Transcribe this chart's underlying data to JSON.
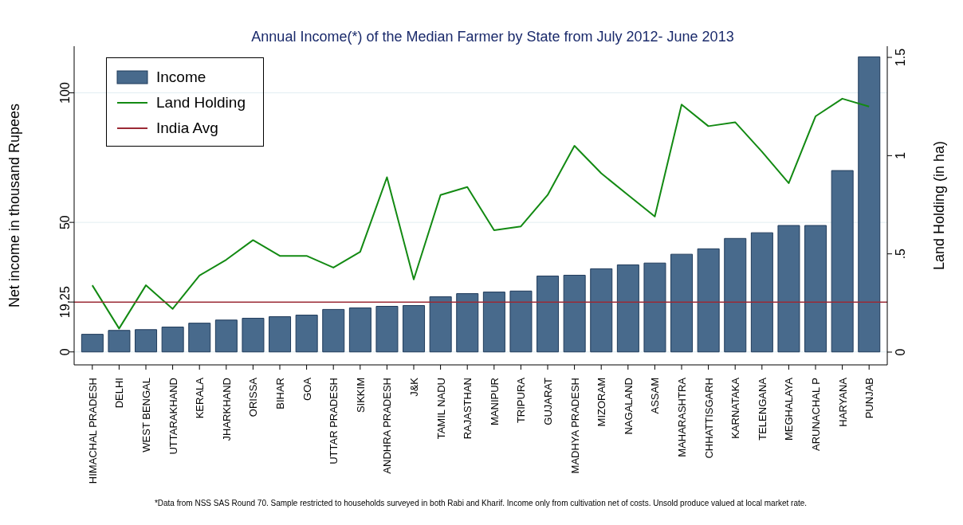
{
  "chart_data": {
    "type": "bar",
    "title": "Annual Income(*) of the Median Farmer by State from July 2012- June 2013",
    "ylabel": "Net income in thousand Rupees",
    "y2label": "Land Holding (in ha)",
    "categories": [
      "HIMACHAL PRADESH",
      "DELHI",
      "WEST BENGAL",
      "UTTARAKHAND",
      "KERALA",
      "JHARKHAND",
      "ORISSA",
      "BIHAR",
      "GOA",
      "UTTAR PRADESH",
      "SIKKIM",
      "ANDHRA PRADESH",
      "J&K",
      "TAMIL NADU",
      "RAJASTHAN",
      "MANIPUR",
      "TRIPURA",
      "GUJARAT",
      "MADHYA PRADESH",
      "MIZORAM",
      "NAGALAND",
      "ASSAM",
      "MAHARASHTRA",
      "CHHATTISGARH",
      "KARNATAKA",
      "TELENGANA",
      "MEGHALAYA",
      "ARUNACHAL P",
      "HARYANA",
      "PUNJAB"
    ],
    "series": [
      {
        "name": "Income",
        "color": "#486a8c",
        "values": [
          6.8,
          8.3,
          8.6,
          9.6,
          11.1,
          12.3,
          13,
          13.6,
          14.2,
          16.4,
          17,
          17.6,
          17.9,
          21.3,
          22.5,
          23.1,
          23.5,
          29.3,
          29.6,
          32.1,
          33.6,
          34.3,
          37.7,
          39.8,
          43.8,
          46,
          48.8,
          48.8,
          70,
          113.9
        ]
      },
      {
        "name": "Land Holding",
        "type": "line",
        "axis": "y2",
        "color": "#138a13",
        "values": [
          0.34,
          0.12,
          0.34,
          0.22,
          0.39,
          0.47,
          0.57,
          0.49,
          0.49,
          0.43,
          0.51,
          0.89,
          0.37,
          0.8,
          0.84,
          0.62,
          0.64,
          0.8,
          1.05,
          0.91,
          0.8,
          0.69,
          1.26,
          1.15,
          1.17,
          1.02,
          0.86,
          1.2,
          1.29,
          1.25
        ]
      }
    ],
    "ylim": [
      -5,
      118
    ],
    "yticks": [
      0,
      19.25,
      50,
      100
    ],
    "y2lim": [
      -0.065,
      1.557
    ],
    "y2ticks": [
      {
        "value": 0,
        "label": "0"
      },
      {
        "value": 0.5,
        "label": ".5"
      },
      {
        "value": 1,
        "label": "1"
      },
      {
        "value": 1.5,
        "label": "1.5"
      }
    ],
    "ref_lines": [
      {
        "axis": "y",
        "value": 19.25,
        "label": "India Avg",
        "color": "#9b2a35"
      }
    ],
    "grid": "y",
    "legend": "top left",
    "marker": "none",
    "line_style": "solid",
    "annotations": [
      "*Data from NSS SAS Round 70. Sample restricted to households surveyed in both Rabi and Kharif. Income only from cultivation net of costs. Unsold produce valued at local market rate."
    ]
  }
}
